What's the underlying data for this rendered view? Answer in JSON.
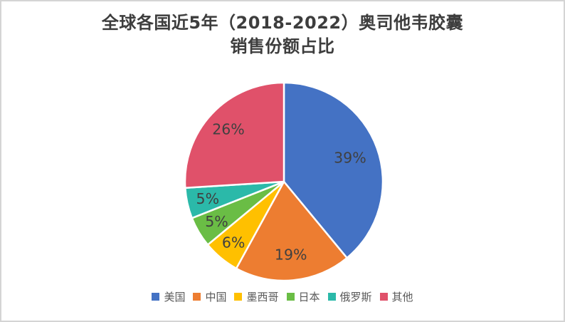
{
  "header": {
    "title_line1": "全球各国近5年（2018-2022）奥司他韦胶囊",
    "title_line2": "销售份额占比"
  },
  "chart_data": {
    "type": "pie",
    "title": "全球各国近5年（2018-2022）奥司他韦胶囊销售份额占比",
    "categories": [
      "美国",
      "中国",
      "墨西哥",
      "日本",
      "俄罗斯",
      "其他"
    ],
    "values": [
      39,
      19,
      6,
      5,
      5,
      26
    ],
    "percent_labels": [
      "39%",
      "19%",
      "6%",
      "5%",
      "5%",
      "26%"
    ],
    "colors": [
      "#4472c4",
      "#ed7d31",
      "#ffc000",
      "#6abd45",
      "#2bb9a9",
      "#e0516a"
    ],
    "start_angle_deg": 0,
    "direction": "clockwise",
    "legend_position": "bottom",
    "data_label_color": "#404040",
    "slice_border_color": "#ffffff"
  }
}
